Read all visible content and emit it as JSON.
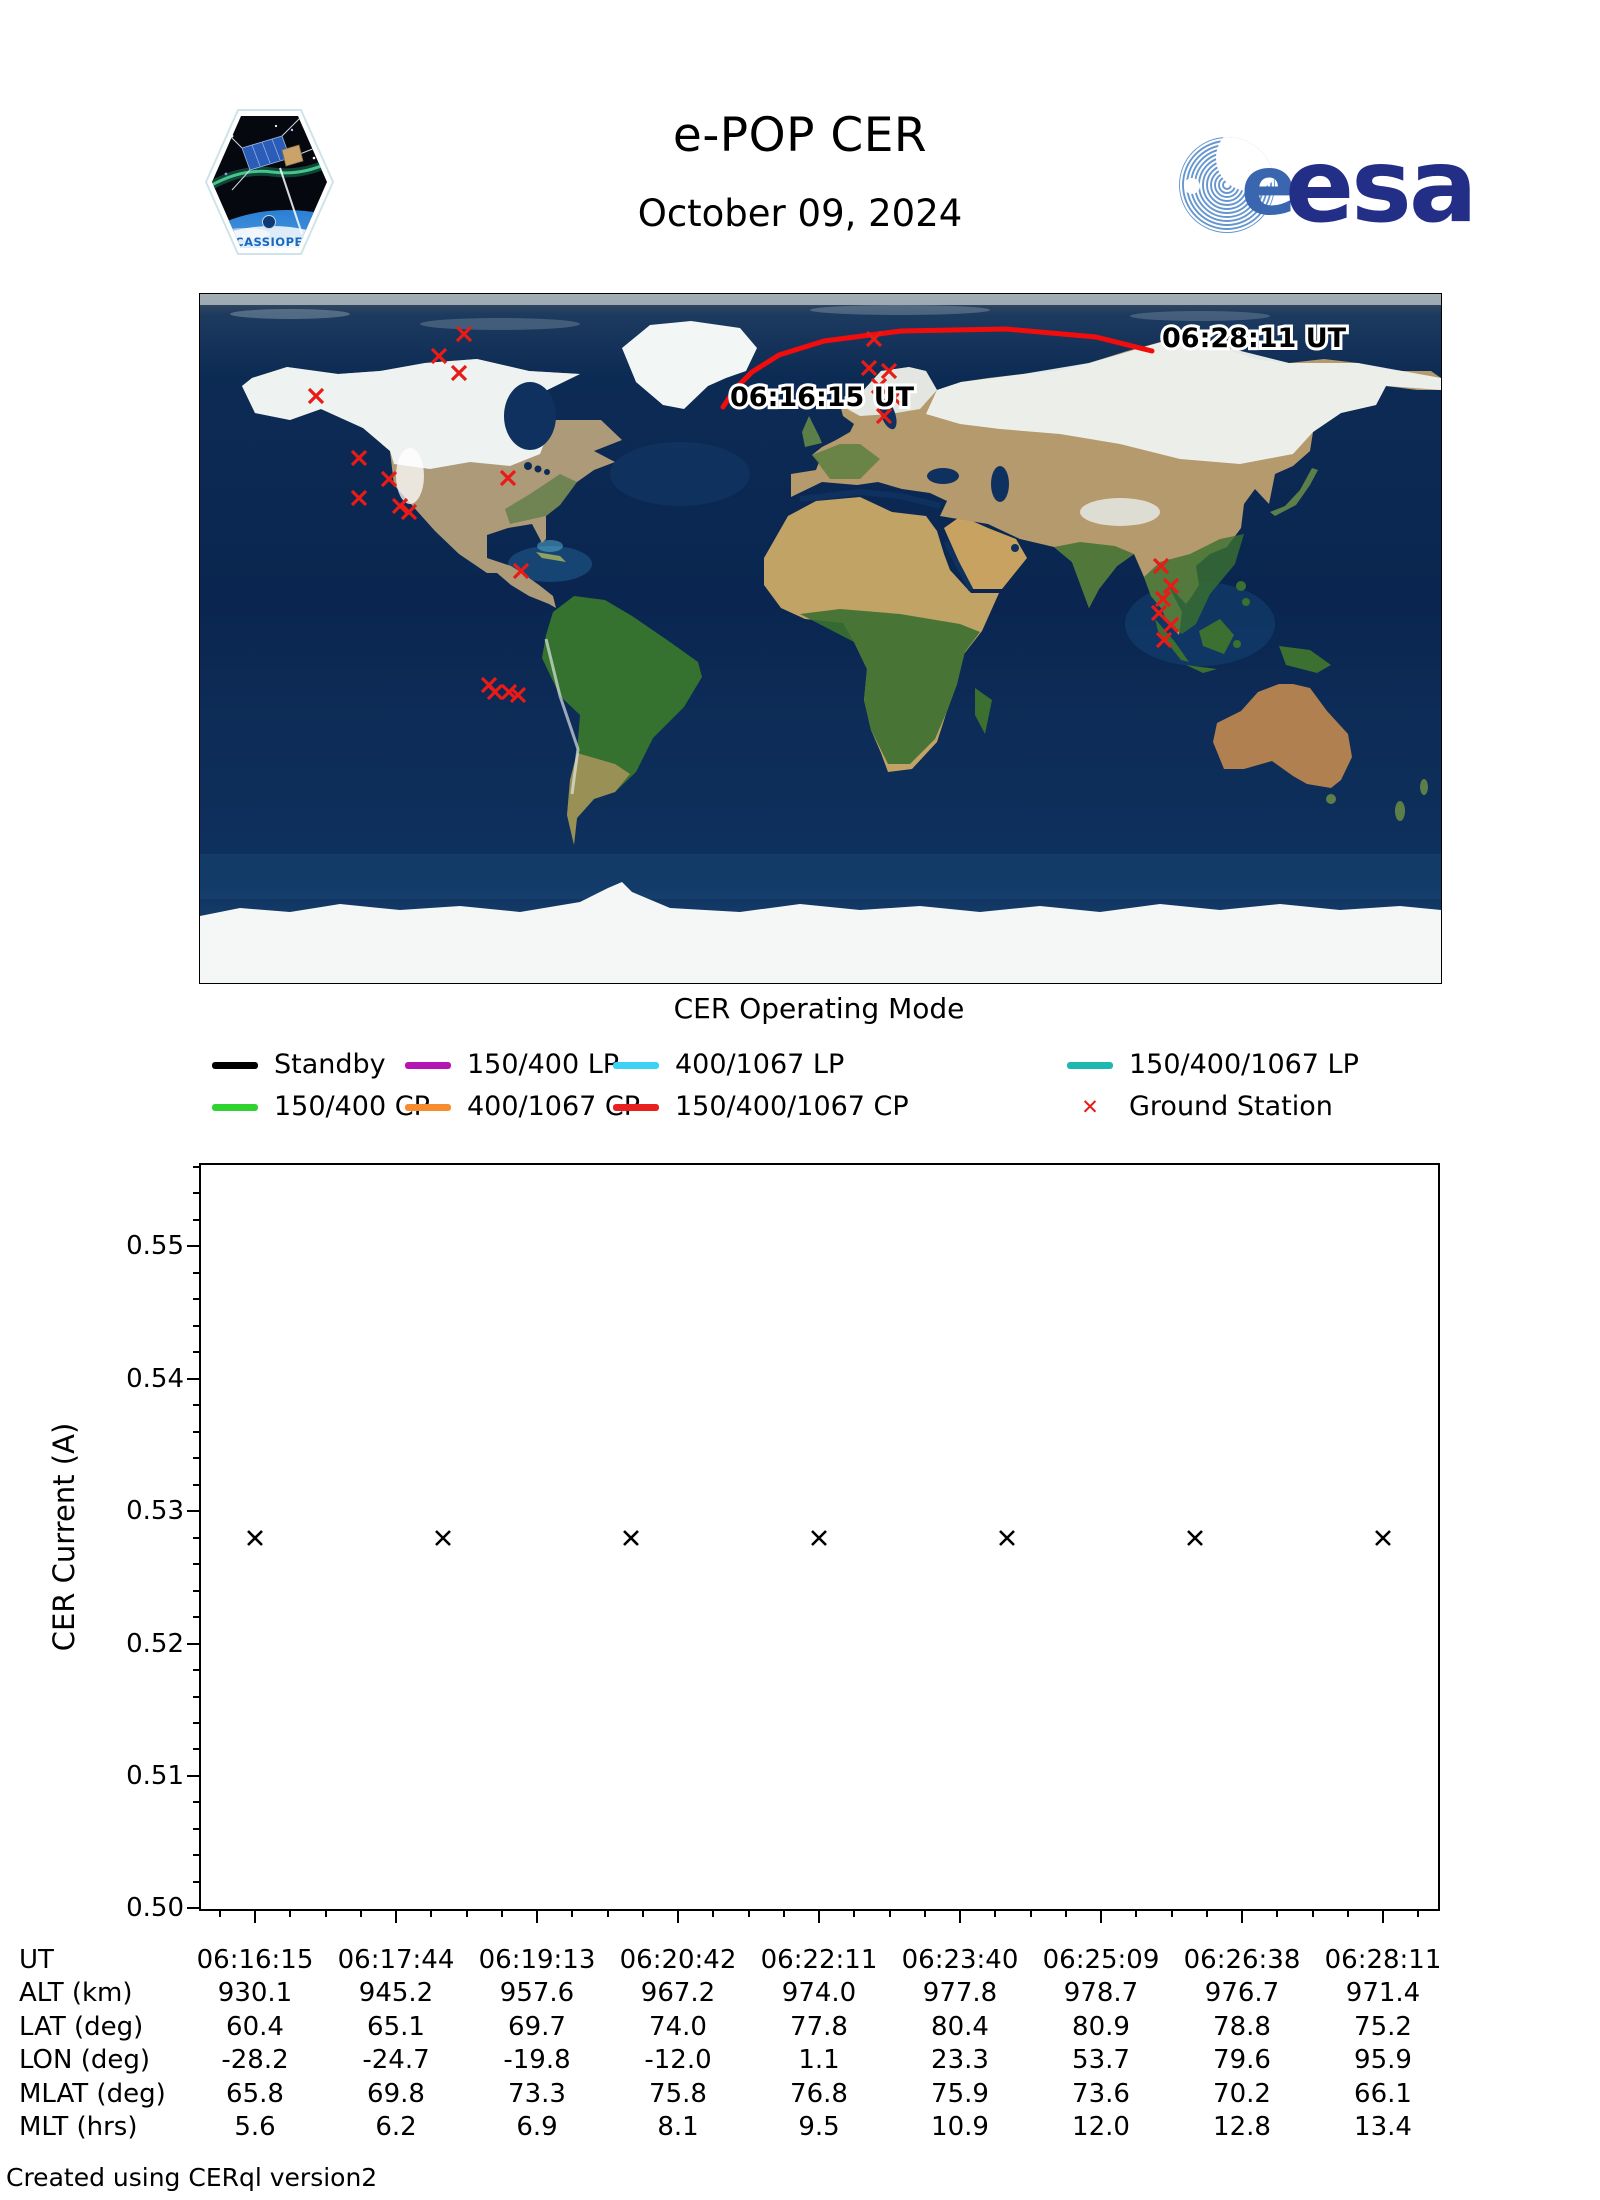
{
  "header": {
    "title": "e-POP CER",
    "date": "October 09, 2024",
    "cassiope_patch_label": "CASSIOPE",
    "esa_logo_label": "esa"
  },
  "map": {
    "caption": "CER Operating Mode",
    "pass_start_label": "06:16:15 UT",
    "pass_end_label": "06:28:11 UT",
    "trajectory_color": "#f20d0d",
    "ground_station_color": "#e81b17",
    "trajectory_points": [
      [
        523,
        113
      ],
      [
        535,
        95
      ],
      [
        552,
        78
      ],
      [
        579,
        61
      ],
      [
        624,
        47
      ],
      [
        701,
        37
      ],
      [
        806,
        35
      ],
      [
        896,
        43
      ],
      [
        952,
        57
      ]
    ],
    "ground_stations": [
      [
        116,
        102
      ],
      [
        264,
        40
      ],
      [
        239,
        62
      ],
      [
        259,
        79
      ],
      [
        159,
        164
      ],
      [
        189,
        185
      ],
      [
        159,
        204
      ],
      [
        200,
        212
      ],
      [
        209,
        218
      ],
      [
        308,
        184
      ],
      [
        321,
        277
      ],
      [
        289,
        391
      ],
      [
        295,
        398
      ],
      [
        309,
        398
      ],
      [
        318,
        401
      ],
      [
        674,
        45
      ],
      [
        669,
        74
      ],
      [
        689,
        77
      ],
      [
        679,
        92
      ],
      [
        694,
        104
      ],
      [
        684,
        122
      ],
      [
        961,
        272
      ],
      [
        971,
        292
      ],
      [
        963,
        305
      ],
      [
        959,
        319
      ],
      [
        971,
        331
      ],
      [
        964,
        346
      ]
    ]
  },
  "legend": {
    "rows": [
      [
        {
          "label": "Standby",
          "color": "#000000",
          "marker": "line"
        },
        {
          "label": "150/400 LP",
          "color": "#b515b5",
          "marker": "line"
        },
        {
          "label": "400/1067 LP",
          "color": "#3dd2f5",
          "marker": "line"
        },
        {
          "label": "150/400/1067 LP",
          "color": "#1fb8ae",
          "marker": "line"
        }
      ],
      [
        {
          "label": "150/400 CP",
          "color": "#2fd32f",
          "marker": "line"
        },
        {
          "label": "400/1067 CP",
          "color": "#f78c2e",
          "marker": "line"
        },
        {
          "label": "150/400/1067 CP",
          "color": "#e8201e",
          "marker": "line"
        },
        {
          "label": "Ground Station",
          "color": "#e81b17",
          "marker": "x"
        }
      ]
    ]
  },
  "chart_data": {
    "type": "scatter",
    "title": "",
    "xlabel": "",
    "ylabel": "CER Current (A)",
    "marker": "x",
    "marker_color": "#000000",
    "ylim": [
      0.4998,
      0.5563
    ],
    "yticks": [
      "0.50",
      "0.51",
      "0.52",
      "0.53",
      "0.54",
      "0.55"
    ],
    "x_tick_times": [
      "06:16:15",
      "06:17:44",
      "06:19:13",
      "06:20:42",
      "06:22:11",
      "06:23:40",
      "06:25:09",
      "06:26:38",
      "06:28:11"
    ],
    "series": [
      {
        "name": "CER Current",
        "x_fraction": [
          0,
          0.1667,
          0.3333,
          0.5,
          0.6667,
          0.8333,
          1.0
        ],
        "y": [
          0.528,
          0.528,
          0.528,
          0.528,
          0.528,
          0.528,
          0.528
        ]
      }
    ]
  },
  "table": {
    "rows": [
      {
        "label": "UT",
        "values": [
          "06:16:15",
          "06:17:44",
          "06:19:13",
          "06:20:42",
          "06:22:11",
          "06:23:40",
          "06:25:09",
          "06:26:38",
          "06:28:11"
        ]
      },
      {
        "label": "ALT (km)",
        "values": [
          "930.1",
          "945.2",
          "957.6",
          "967.2",
          "974.0",
          "977.8",
          "978.7",
          "976.7",
          "971.4"
        ]
      },
      {
        "label": "LAT (deg)",
        "values": [
          "60.4",
          "65.1",
          "69.7",
          "74.0",
          "77.8",
          "80.4",
          "80.9",
          "78.8",
          "75.2"
        ]
      },
      {
        "label": "LON (deg)",
        "values": [
          "-28.2",
          "-24.7",
          "-19.8",
          "-12.0",
          "1.1",
          "23.3",
          "53.7",
          "79.6",
          "95.9"
        ]
      },
      {
        "label": "MLAT (deg)",
        "values": [
          "65.8",
          "69.8",
          "73.3",
          "75.8",
          "76.8",
          "75.9",
          "73.6",
          "70.2",
          "66.1"
        ]
      },
      {
        "label": "MLT (hrs)",
        "values": [
          "5.6",
          "6.2",
          "6.9",
          "8.1",
          "9.5",
          "10.9",
          "12.0",
          "12.8",
          "13.4"
        ]
      }
    ]
  },
  "footer": {
    "credit": "Created using CERql version2"
  }
}
